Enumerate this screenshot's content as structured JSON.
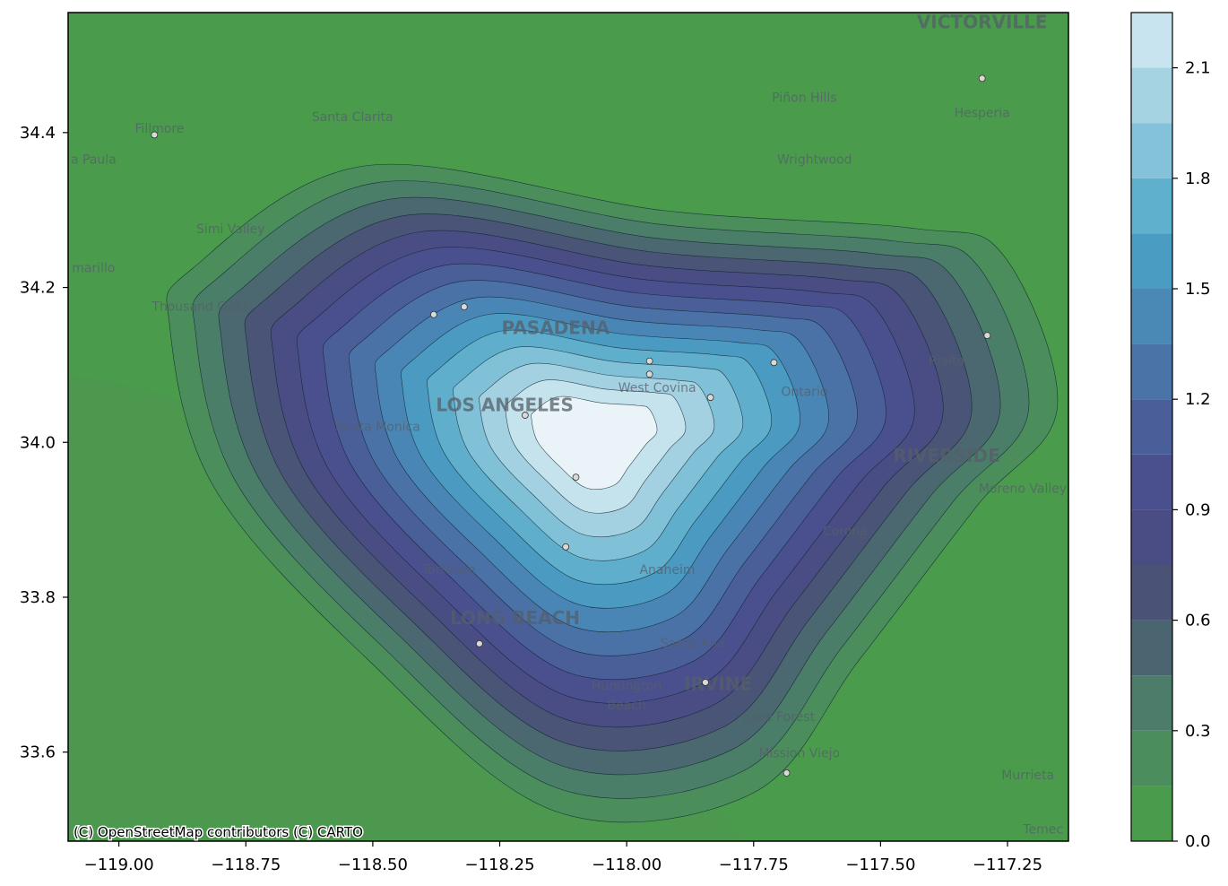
{
  "map": {
    "attribution": "(C) OpenStreetMap contributors (C) CARTO",
    "extent": {
      "lon": [
        -119.1,
        -117.13
      ],
      "lat": [
        33.485,
        34.555
      ]
    },
    "x_ticks": [
      {
        "value": -119.0,
        "label": "−119.00"
      },
      {
        "value": -118.75,
        "label": "−118.75"
      },
      {
        "value": -118.5,
        "label": "−118.50"
      },
      {
        "value": -118.25,
        "label": "−118.25"
      },
      {
        "value": -118.0,
        "label": "−118.00"
      },
      {
        "value": -117.75,
        "label": "−117.75"
      },
      {
        "value": -117.5,
        "label": "−117.50"
      },
      {
        "value": -117.25,
        "label": "−117.25"
      }
    ],
    "y_ticks": [
      {
        "value": 33.6,
        "label": "33.6"
      },
      {
        "value": 33.8,
        "label": "33.8"
      },
      {
        "value": 34.0,
        "label": "34.0"
      },
      {
        "value": 34.2,
        "label": "34.2"
      },
      {
        "value": 34.4,
        "label": "34.4"
      }
    ],
    "places": [
      {
        "name": "VICTORVILLE",
        "lon": -117.3,
        "lat": 34.535,
        "major": true
      },
      {
        "name": "Piñon Hills",
        "lon": -117.65,
        "lat": 34.44,
        "major": false
      },
      {
        "name": "Hesperia",
        "lon": -117.3,
        "lat": 34.42,
        "major": false
      },
      {
        "name": "Santa Clarita",
        "lon": -118.54,
        "lat": 34.415,
        "major": false
      },
      {
        "name": "Fillmore",
        "lon": -118.92,
        "lat": 34.4,
        "major": false
      },
      {
        "name": "a Paula",
        "lon": -119.05,
        "lat": 34.36,
        "major": false
      },
      {
        "name": "Wrightwood",
        "lon": -117.63,
        "lat": 34.36,
        "major": false
      },
      {
        "name": "Simi Valley",
        "lon": -118.78,
        "lat": 34.27,
        "major": false
      },
      {
        "name": "marillo",
        "lon": -119.05,
        "lat": 34.22,
        "major": false
      },
      {
        "name": "Thousand Oaks",
        "lon": -118.84,
        "lat": 34.17,
        "major": false
      },
      {
        "name": "PASADENA",
        "lon": -118.14,
        "lat": 34.14,
        "major": true
      },
      {
        "name": "Rialto",
        "lon": -117.37,
        "lat": 34.1,
        "major": false
      },
      {
        "name": "West Covina",
        "lon": -117.94,
        "lat": 34.065,
        "major": false
      },
      {
        "name": "Ontario",
        "lon": -117.65,
        "lat": 34.06,
        "major": false
      },
      {
        "name": "LOS ANGELES",
        "lon": -118.24,
        "lat": 34.04,
        "major": true
      },
      {
        "name": "Santa Monica",
        "lon": -118.49,
        "lat": 34.015,
        "major": false
      },
      {
        "name": "RIVERSIDE",
        "lon": -117.37,
        "lat": 33.975,
        "major": true
      },
      {
        "name": "Moreno Valley",
        "lon": -117.22,
        "lat": 33.935,
        "major": false
      },
      {
        "name": "Corona",
        "lon": -117.57,
        "lat": 33.88,
        "major": false
      },
      {
        "name": "Torrance",
        "lon": -118.35,
        "lat": 33.83,
        "major": false
      },
      {
        "name": "Anaheim",
        "lon": -117.92,
        "lat": 33.83,
        "major": false
      },
      {
        "name": "LONG BEACH",
        "lon": -118.22,
        "lat": 33.765,
        "major": true
      },
      {
        "name": "Santa Ana",
        "lon": -117.87,
        "lat": 33.735,
        "major": false
      },
      {
        "name": "Huntington",
        "lon": -118.0,
        "lat": 33.68,
        "major": false
      },
      {
        "name": "Beach",
        "lon": -118.0,
        "lat": 33.655,
        "major": false
      },
      {
        "name": "IRVINE",
        "lon": -117.82,
        "lat": 33.68,
        "major": true
      },
      {
        "name": "Lake Forest",
        "lon": -117.7,
        "lat": 33.64,
        "major": false
      },
      {
        "name": "Mission Viejo",
        "lon": -117.66,
        "lat": 33.593,
        "major": false
      },
      {
        "name": "Murrieta",
        "lon": -117.21,
        "lat": 33.565,
        "major": false
      },
      {
        "name": "Temec",
        "lon": -117.18,
        "lat": 33.495,
        "major": false
      }
    ]
  },
  "colorbar": {
    "ticks": [
      {
        "value": 0.0,
        "label": "0.0"
      },
      {
        "value": 0.3,
        "label": "0.3"
      },
      {
        "value": 0.6,
        "label": "0.6"
      },
      {
        "value": 0.9,
        "label": "0.9"
      },
      {
        "value": 1.2,
        "label": "1.2"
      },
      {
        "value": 1.5,
        "label": "1.5"
      },
      {
        "value": 1.8,
        "label": "1.8"
      },
      {
        "value": 2.1,
        "label": "2.1"
      }
    ],
    "range": [
      0.0,
      2.25
    ]
  },
  "chart_data": {
    "type": "heatmap",
    "title": "",
    "xlabel": "",
    "ylabel": "",
    "xlim": [
      -119.1,
      -117.13
    ],
    "ylim": [
      33.485,
      34.555
    ],
    "levels": [
      0.0,
      0.15,
      0.3,
      0.45,
      0.6,
      0.75,
      0.9,
      1.05,
      1.2,
      1.35,
      1.5,
      1.65,
      1.8,
      1.95,
      2.1,
      2.25
    ],
    "level_colors": [
      "#4a9b4c",
      "#4b8d5d",
      "#4b7d6a",
      "#4b6570",
      "#4a5276",
      "#4a4d84",
      "#4a508e",
      "#4a5f99",
      "#4a74a8",
      "#4a88b6",
      "#4a9cc3",
      "#5fb0cd",
      "#83c2d9",
      "#a6d3e2",
      "#c8e4ee",
      "#edf5f9"
    ],
    "points": [
      {
        "lon": -118.93,
        "lat": 34.397
      },
      {
        "lon": -118.38,
        "lat": 34.165
      },
      {
        "lon": -118.32,
        "lat": 34.175
      },
      {
        "lon": -118.2,
        "lat": 34.035
      },
      {
        "lon": -118.1,
        "lat": 33.955
      },
      {
        "lon": -118.12,
        "lat": 33.865
      },
      {
        "lon": -118.29,
        "lat": 33.74
      },
      {
        "lon": -117.955,
        "lat": 34.105
      },
      {
        "lon": -117.955,
        "lat": 34.088
      },
      {
        "lon": -117.835,
        "lat": 34.058
      },
      {
        "lon": -117.71,
        "lat": 34.103
      },
      {
        "lon": -117.845,
        "lat": 33.69
      },
      {
        "lon": -117.685,
        "lat": 33.573
      },
      {
        "lon": -117.29,
        "lat": 34.138
      },
      {
        "lon": -117.3,
        "lat": 34.47
      }
    ]
  }
}
